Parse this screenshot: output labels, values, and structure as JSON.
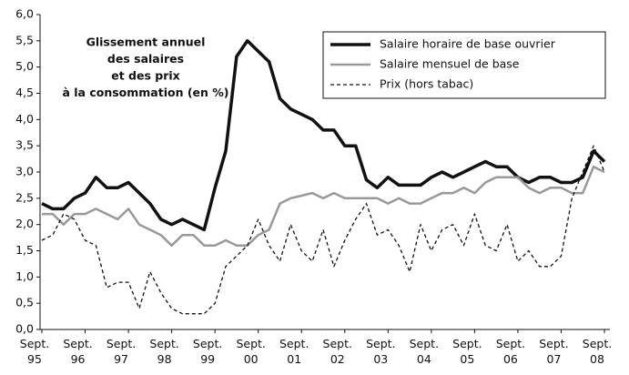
{
  "chart_data": {
    "type": "line",
    "annotation": [
      "Glissement annuel",
      "des salaires",
      "et des prix",
      "à la consommation (en %)"
    ],
    "categories": [
      "Sept. 95",
      null,
      null,
      null,
      "Sept. 96",
      null,
      null,
      null,
      "Sept. 97",
      null,
      null,
      null,
      "Sept. 98",
      null,
      null,
      null,
      "Sept. 99",
      null,
      null,
      null,
      "Sept. 00",
      null,
      null,
      null,
      "Sept. 01",
      null,
      null,
      null,
      "Sept. 02",
      null,
      null,
      null,
      "Sept. 03",
      null,
      null,
      null,
      "Sept. 04",
      null,
      null,
      null,
      "Sept. 05",
      null,
      null,
      null,
      "Sept. 06",
      null,
      null,
      null,
      "Sept. 07",
      null,
      null,
      null,
      "Sept. 08"
    ],
    "series": [
      {
        "name": "Salaire horaire de base ouvrier",
        "color": "#111111",
        "style": "solid",
        "values": [
          2.4,
          2.3,
          2.3,
          2.5,
          2.6,
          2.9,
          2.7,
          2.7,
          2.8,
          2.6,
          2.4,
          2.1,
          2.0,
          2.1,
          2.0,
          1.9,
          2.7,
          3.4,
          5.2,
          5.5,
          5.3,
          5.1,
          4.4,
          4.2,
          4.1,
          4.0,
          3.8,
          3.8,
          3.5,
          3.5,
          2.85,
          2.7,
          2.9,
          2.75,
          2.75,
          2.75,
          2.9,
          3.0,
          2.9,
          3.0,
          3.1,
          3.2,
          3.1,
          3.1,
          2.9,
          2.8,
          2.9,
          2.9,
          2.8,
          2.8,
          2.9,
          3.4,
          3.2
        ]
      },
      {
        "name": "Salaire mensuel de base",
        "color": "#999999",
        "style": "solid",
        "values": [
          2.2,
          2.2,
          2.0,
          2.2,
          2.2,
          2.3,
          2.2,
          2.1,
          2.3,
          2.0,
          1.9,
          1.8,
          1.6,
          1.8,
          1.8,
          1.6,
          1.6,
          1.7,
          1.6,
          1.6,
          1.8,
          1.9,
          2.4,
          2.5,
          2.55,
          2.6,
          2.5,
          2.6,
          2.5,
          2.5,
          2.5,
          2.5,
          2.4,
          2.5,
          2.4,
          2.4,
          2.5,
          2.6,
          2.6,
          2.7,
          2.6,
          2.8,
          2.9,
          2.9,
          2.9,
          2.7,
          2.6,
          2.7,
          2.7,
          2.6,
          2.6,
          3.1,
          3.0
        ]
      },
      {
        "name": "Prix (hors tabac)",
        "color": "#111111",
        "style": "dashed",
        "values": [
          1.7,
          1.8,
          2.2,
          2.1,
          1.7,
          1.6,
          0.8,
          0.9,
          0.9,
          0.4,
          1.1,
          0.7,
          0.4,
          0.3,
          0.3,
          0.3,
          0.5,
          1.2,
          1.4,
          1.6,
          2.1,
          1.6,
          1.3,
          2.0,
          1.5,
          1.3,
          1.9,
          1.2,
          1.7,
          2.1,
          2.4,
          1.8,
          1.9,
          1.6,
          1.1,
          2.0,
          1.5,
          1.9,
          2.0,
          1.6,
          2.2,
          1.6,
          1.5,
          2.0,
          1.3,
          1.5,
          1.2,
          1.2,
          1.4,
          2.5,
          3.0,
          3.5,
          3.0
        ]
      }
    ],
    "ylim": [
      0,
      6
    ],
    "yticks": [
      {
        "value": 0,
        "label": "0,0"
      },
      {
        "value": 0.5,
        "label": "0,5"
      },
      {
        "value": 1,
        "label": "1,0"
      },
      {
        "value": 1.5,
        "label": "1,5"
      },
      {
        "value": 2,
        "label": "2,0"
      },
      {
        "value": 2.5,
        "label": "2,5"
      },
      {
        "value": 3,
        "label": "3,0"
      },
      {
        "value": 3.5,
        "label": "3,5"
      },
      {
        "value": 4,
        "label": "4,0"
      },
      {
        "value": 4.5,
        "label": "4,5"
      },
      {
        "value": 5,
        "label": "5,0"
      },
      {
        "value": 5.5,
        "label": "5,5"
      },
      {
        "value": 6,
        "label": "6,0"
      }
    ],
    "grid": false,
    "legend": "top-right"
  }
}
